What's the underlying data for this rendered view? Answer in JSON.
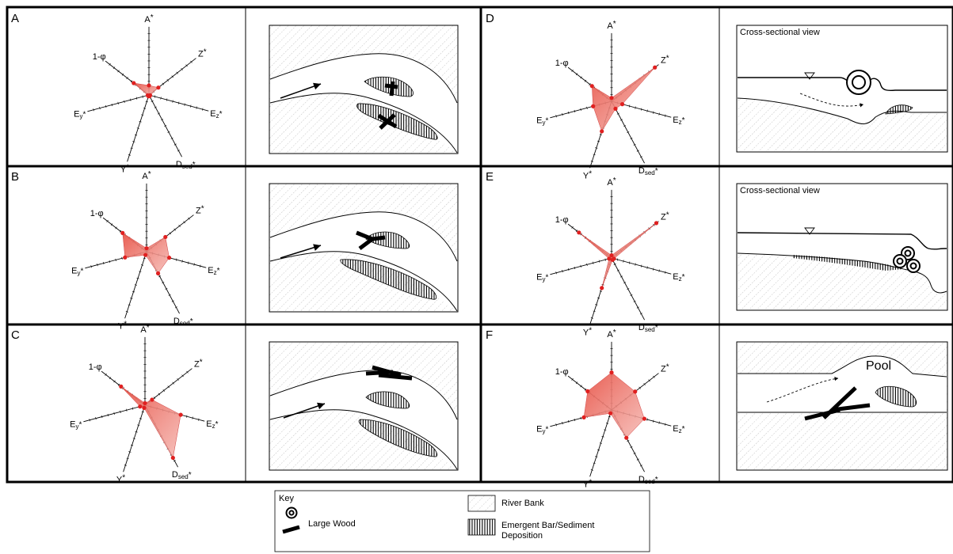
{
  "panels": [
    {
      "id": "A",
      "values": {
        "A": 0.14,
        "Z": 0.2,
        "Ez": 0.02,
        "Dsed": 0.02,
        "Y": 0.02,
        "Ey": 0.02,
        "phi": 0.35
      },
      "view": "plan-A"
    },
    {
      "id": "B",
      "values": {
        "A": 0.05,
        "Z": 0.4,
        "Ez": 0.38,
        "Dsed": 0.35,
        "Y": 0.05,
        "Ey": 0.35,
        "phi": 0.55
      },
      "view": "plan-B"
    },
    {
      "id": "C",
      "values": {
        "A": 0.03,
        "Z": 0.15,
        "Ez": 0.6,
        "Dsed": 0.85,
        "Y": 0.04,
        "Ey": 0.08,
        "phi": 0.55
      },
      "view": "plan-C"
    },
    {
      "id": "D",
      "values": {
        "A": 0.05,
        "Z": 0.92,
        "Ez": 0.18,
        "Dsed": 0.12,
        "Y": 0.45,
        "Ey": 0.3,
        "phi": 0.45
      },
      "view": "cross-D"
    },
    {
      "id": "E",
      "values": {
        "A": 0.04,
        "Z": 0.95,
        "Ez": 0.04,
        "Dsed": 0.03,
        "Y": 0.45,
        "Ey": 0.04,
        "phi": 0.75
      },
      "view": "cross-E"
    },
    {
      "id": "F",
      "values": {
        "A": 0.55,
        "Z": 0.5,
        "Ez": 0.55,
        "Dsed": 0.45,
        "Y": 0.05,
        "Ey": 0.45,
        "phi": 0.55
      },
      "view": "plan-F"
    }
  ],
  "axes": {
    "A": {
      "main": "A",
      "sub": "",
      "sup": "*"
    },
    "Z": {
      "main": "Z",
      "sub": "",
      "sup": "*"
    },
    "Ez": {
      "main": "E",
      "sub": "z",
      "sup": "*"
    },
    "Dsed": {
      "main": "D",
      "sub": "sed",
      "sup": "*"
    },
    "Y": {
      "main": "Y",
      "sub": "",
      "sup": "*"
    },
    "Ey": {
      "main": "E",
      "sub": "y",
      "sup": "*"
    },
    "phi": {
      "main": "1-φ",
      "sub": "",
      "sup": ""
    }
  },
  "cross_section_title": "Cross-sectional view",
  "pool_label": "Pool",
  "key": {
    "title": "Key",
    "large_wood": "Large Wood",
    "river_bank": "River Bank",
    "bar_line1": "Emergent Bar/Sediment",
    "bar_line2": "Deposition"
  },
  "colors": {
    "fill": "#e8564a",
    "dot": "#e02020"
  }
}
